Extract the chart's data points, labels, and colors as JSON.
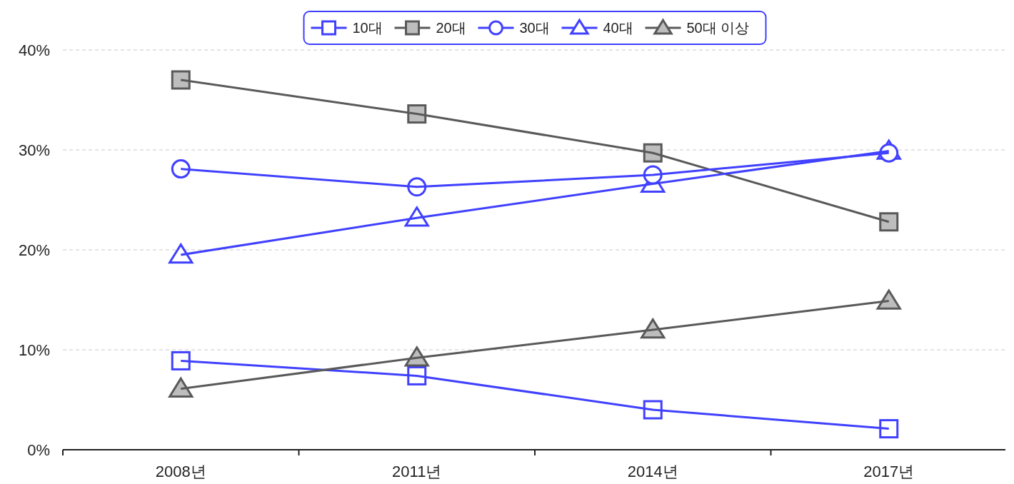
{
  "chart_data": {
    "type": "line",
    "categories": [
      "2008년",
      "2011년",
      "2014년",
      "2017년"
    ],
    "series": [
      {
        "name": "10대",
        "color": "#4040ff",
        "marker": "square",
        "values": [
          8.9,
          7.4,
          4.0,
          2.1
        ]
      },
      {
        "name": "20대",
        "color": "#595959",
        "marker": "square",
        "values": [
          37.0,
          33.6,
          29.7,
          22.8
        ]
      },
      {
        "name": "30대",
        "color": "#4040ff",
        "marker": "circle",
        "values": [
          28.1,
          26.3,
          27.5,
          29.7
        ]
      },
      {
        "name": "40대",
        "color": "#4040ff",
        "marker": "triangle",
        "values": [
          19.5,
          23.2,
          26.6,
          29.9
        ]
      },
      {
        "name": "50대 이상",
        "color": "#595959",
        "marker": "triangle",
        "values": [
          6.1,
          9.2,
          12.0,
          14.9
        ]
      }
    ],
    "ylim": [
      0,
      40
    ],
    "yticks": [
      {
        "value": 0,
        "label": "0%"
      },
      {
        "value": 10,
        "label": "10%"
      },
      {
        "value": 20,
        "label": "20%"
      },
      {
        "value": 30,
        "label": "30%"
      },
      {
        "value": 40,
        "label": "40%"
      }
    ],
    "grid": "y",
    "legend": "top",
    "line_style": "solid"
  }
}
